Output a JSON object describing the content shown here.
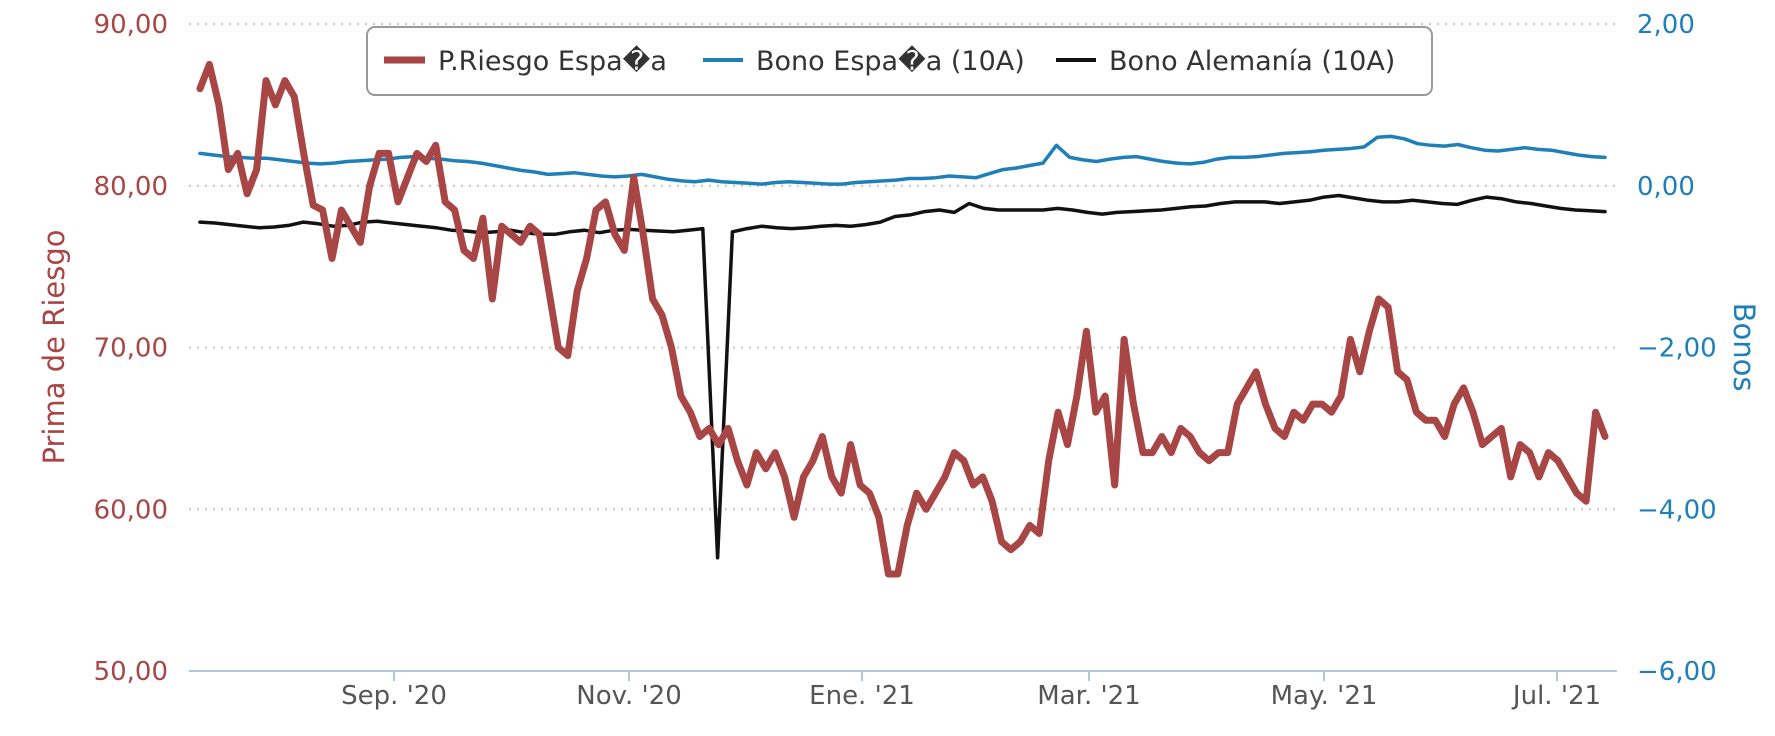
{
  "chart_data": {
    "type": "line",
    "x_tick_labels": [
      "Sep. '20",
      "Nov. '20",
      "Ene. '21",
      "Mar. '21",
      "May. '21",
      "Jul. '21"
    ],
    "y_left": {
      "label": "Prima de Riesgo",
      "range": [
        50,
        90
      ],
      "ticks": [
        "50,00",
        "60,00",
        "70,00",
        "80,00",
        "90,00"
      ],
      "color": "#a84646"
    },
    "y_right": {
      "label": "Bonos",
      "range": [
        -6,
        2
      ],
      "ticks": [
        "−6,00",
        "−4,00",
        "−2,00",
        "0,00",
        "2,00"
      ],
      "color": "#1f7fb8"
    },
    "grid": "horizontal dotted",
    "legend_position": "top-center",
    "series": [
      {
        "name": "P.Riesgo Espa�a",
        "axis": "left",
        "color": "#a84646",
        "values": [
          86,
          87.5,
          85,
          81,
          82,
          79.5,
          81,
          86.5,
          85,
          86.5,
          85.5,
          82,
          78.8,
          78.5,
          75.5,
          78.5,
          77.5,
          76.5,
          80,
          82,
          82,
          79,
          80.5,
          82,
          81.5,
          82.5,
          79,
          78.5,
          76,
          75.5,
          78,
          73,
          77.5,
          77,
          76.5,
          77.5,
          77,
          73.5,
          70,
          69.5,
          73.5,
          75.5,
          78.5,
          79,
          77,
          76,
          80.5,
          77,
          73,
          72,
          70,
          67,
          66,
          64.5,
          65,
          64,
          65,
          63,
          61.5,
          63.5,
          62.5,
          63.5,
          62,
          59.5,
          62,
          63,
          64.5,
          62,
          61,
          64,
          61.5,
          61,
          59.5,
          56,
          56,
          59,
          61,
          60,
          61,
          62,
          63.5,
          63,
          61.5,
          62,
          60.5,
          58,
          57.5,
          58,
          59,
          58.5,
          63,
          66,
          64,
          67,
          71,
          66,
          67,
          61.5,
          70.5,
          66.5,
          63.5,
          63.5,
          64.5,
          63.5,
          65,
          64.5,
          63.5,
          63,
          63.5,
          63.5,
          66.5,
          67.5,
          68.5,
          66.5,
          65,
          64.5,
          66,
          65.5,
          66.5,
          66.5,
          66,
          67,
          70.5,
          68.5,
          71,
          73,
          72.5,
          68.5,
          68,
          66,
          65.5,
          65.5,
          64.5,
          66.5,
          67.5,
          66,
          64,
          64.5,
          65,
          62,
          64,
          63.5,
          62,
          63.5,
          63,
          62,
          61,
          60.5,
          66,
          64.5
        ]
      },
      {
        "name": "Bono Espa�a (10A)",
        "axis": "right",
        "color": "#1f7fb8",
        "values": [
          0.4,
          0.38,
          0.36,
          0.35,
          0.34,
          0.34,
          0.32,
          0.3,
          0.28,
          0.27,
          0.28,
          0.3,
          0.31,
          0.32,
          0.33,
          0.35,
          0.36,
          0.34,
          0.33,
          0.31,
          0.3,
          0.28,
          0.25,
          0.22,
          0.19,
          0.17,
          0.14,
          0.15,
          0.16,
          0.14,
          0.12,
          0.11,
          0.12,
          0.14,
          0.11,
          0.08,
          0.06,
          0.05,
          0.07,
          0.05,
          0.04,
          0.03,
          0.02,
          0.04,
          0.05,
          0.04,
          0.03,
          0.02,
          0.02,
          0.04,
          0.05,
          0.06,
          0.07,
          0.09,
          0.09,
          0.1,
          0.12,
          0.11,
          0.1,
          0.15,
          0.2,
          0.22,
          0.25,
          0.28,
          0.5,
          0.35,
          0.32,
          0.3,
          0.33,
          0.35,
          0.36,
          0.33,
          0.3,
          0.28,
          0.27,
          0.29,
          0.33,
          0.35,
          0.35,
          0.36,
          0.38,
          0.4,
          0.41,
          0.42,
          0.44,
          0.45,
          0.46,
          0.48,
          0.6,
          0.61,
          0.58,
          0.52,
          0.5,
          0.49,
          0.51,
          0.47,
          0.44,
          0.43,
          0.45,
          0.47,
          0.45,
          0.44,
          0.41,
          0.38,
          0.36,
          0.35
        ]
      },
      {
        "name": "Bono Alemanía (10A)",
        "axis": "right",
        "color": "#111111",
        "values": [
          -0.45,
          -0.46,
          -0.48,
          -0.5,
          -0.52,
          -0.51,
          -0.49,
          -0.45,
          -0.47,
          -0.5,
          -0.49,
          -0.45,
          -0.44,
          -0.46,
          -0.48,
          -0.5,
          -0.52,
          -0.55,
          -0.56,
          -0.58,
          -0.57,
          -0.55,
          -0.58,
          -0.6,
          -0.6,
          -0.57,
          -0.55,
          -0.58,
          -0.55,
          -0.54,
          -0.55,
          -0.56,
          -0.57,
          -0.55,
          -0.53,
          -4.6,
          -0.57,
          -0.53,
          -0.5,
          -0.52,
          -0.53,
          -0.52,
          -0.5,
          -0.49,
          -0.5,
          -0.48,
          -0.45,
          -0.38,
          -0.36,
          -0.32,
          -0.3,
          -0.33,
          -0.22,
          -0.28,
          -0.3,
          -0.3,
          -0.3,
          -0.3,
          -0.28,
          -0.3,
          -0.33,
          -0.35,
          -0.33,
          -0.32,
          -0.31,
          -0.3,
          -0.28,
          -0.26,
          -0.25,
          -0.22,
          -0.2,
          -0.2,
          -0.2,
          -0.22,
          -0.2,
          -0.18,
          -0.14,
          -0.12,
          -0.15,
          -0.18,
          -0.2,
          -0.2,
          -0.18,
          -0.2,
          -0.22,
          -0.23,
          -0.18,
          -0.14,
          -0.16,
          -0.2,
          -0.22,
          -0.25,
          -0.28,
          -0.3,
          -0.31,
          -0.32
        ]
      }
    ]
  }
}
